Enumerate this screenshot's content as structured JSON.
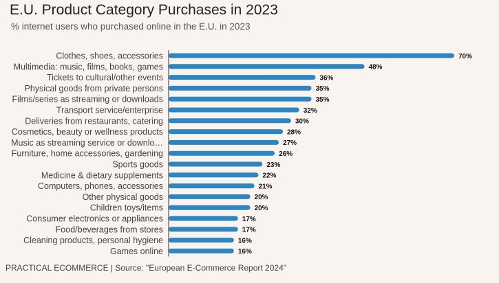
{
  "header": {
    "title": "E.U. Product Category Purchases in 2023",
    "subtitle": "% internet users who purchased online in the E.U. in 2023"
  },
  "footer": {
    "text": "PRACTICAL ECOMMERCE | Source: \"European E-Commerce Report 2024\""
  },
  "colors": {
    "bar": "#2e86c1",
    "axis": "#333333"
  },
  "chart_data": {
    "type": "bar",
    "orientation": "horizontal",
    "title": "E.U. Product Category Purchases in 2023",
    "subtitle": "% internet users who purchased online in the E.U. in 2023",
    "xlabel": "",
    "ylabel": "",
    "value_suffix": "%",
    "xlim": [
      0,
      70
    ],
    "grid": false,
    "categories": [
      "Clothes, shoes, accessories",
      "Multimedia: music, films, books, games",
      "Tickets to cultural/other events",
      "Physical goods from private persons",
      "Films/series as streaming or downloads",
      "Transport service/enterprise",
      "Deliveries from restaurants, catering",
      "Cosmetics, beauty or wellness products",
      "Music as streaming service or downlo…",
      "Furniture, home accessories, gardening",
      "Sports goods",
      "Medicine & dietary supplements",
      "Computers, phones, accessories",
      "Other physical goods",
      "Children toys/items",
      "Consumer electronics or appliances",
      "Food/beverages from stores",
      "Cleaning products, personal hygiene",
      "Games online"
    ],
    "values": [
      70,
      48,
      36,
      35,
      35,
      32,
      30,
      28,
      27,
      26,
      23,
      22,
      21,
      20,
      20,
      17,
      17,
      16,
      16
    ]
  }
}
